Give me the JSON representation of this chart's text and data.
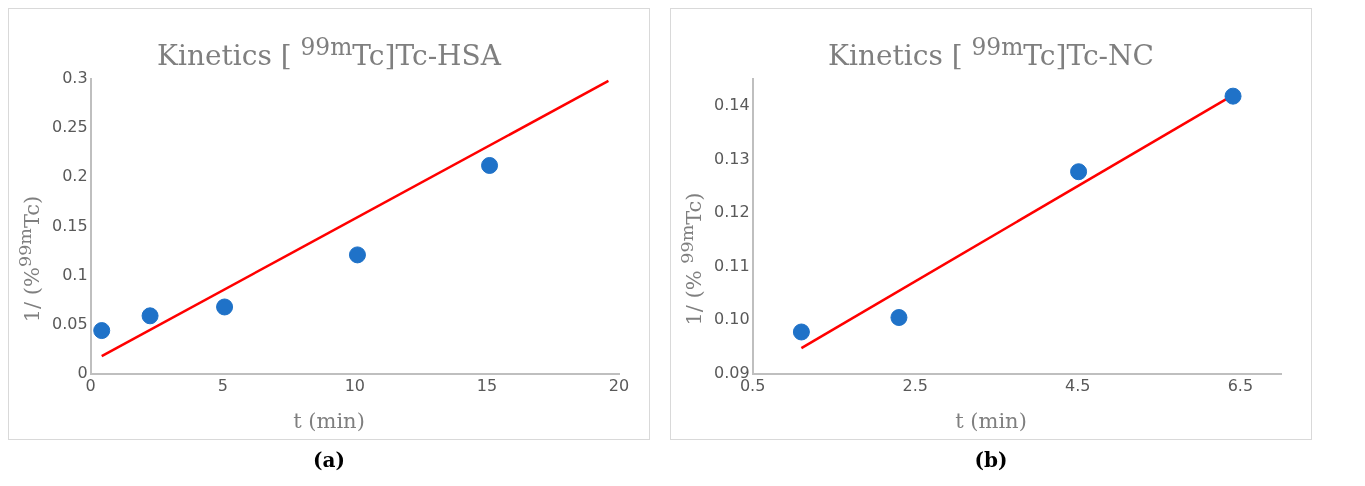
{
  "chart_data": [
    {
      "type": "scatter",
      "title": "Kinetics [ $^{99m}$Tc]Tc-HSA",
      "xlabel": "t (min)",
      "ylabel": "1/ (%$^{99m}$Tc)",
      "annotations": [
        "(a)"
      ],
      "xlim": [
        0,
        20
      ],
      "xticks": [
        0,
        5,
        10,
        15,
        20
      ],
      "ylim": [
        0,
        0.3
      ],
      "yticks": [
        0,
        0.05,
        0.1,
        0.15,
        0.2,
        0.25,
        0.3
      ],
      "grid": false,
      "legend": false,
      "series": [
        {
          "color": "#1f72c8",
          "marker": "circle",
          "x": [
            0.42,
            2.25,
            5.07,
            10.1,
            15.1
          ],
          "values": [
            0.044,
            0.059,
            0.068,
            0.121,
            0.212
          ]
        },
        {
          "type": "line",
          "marker": "none",
          "color": "#ff0000",
          "x": [
            0.42,
            19.6
          ],
          "values": [
            0.018,
            0.298
          ]
        }
      ]
    },
    {
      "type": "scatter",
      "title": "Kinetics [ $^{99m}$Tc]Tc-NC",
      "xlabel": "t (min)",
      "ylabel": "1/ (% $^{99m}$Tc)",
      "annotations": [
        "(b)"
      ],
      "xlim": [
        0.5,
        7
      ],
      "xticks": [
        0.5,
        2.5,
        4.5,
        6.5
      ],
      "ylim": [
        0.09,
        0.145
      ],
      "yticks": [
        0.09,
        {
          "value": 0.1,
          "label": "0.10"
        },
        0.11,
        0.12,
        0.13,
        0.14
      ],
      "grid": false,
      "legend": false,
      "series": [
        {
          "color": "#1f72c8",
          "marker": "circle",
          "x": [
            1.1,
            2.3,
            4.51,
            6.41
          ],
          "values": [
            0.0978,
            0.1005,
            0.1277,
            0.1418
          ]
        },
        {
          "type": "line",
          "marker": "none",
          "color": "#ff0000",
          "x": [
            1.1,
            6.41
          ],
          "values": [
            0.0948,
            0.142
          ]
        }
      ]
    }
  ]
}
